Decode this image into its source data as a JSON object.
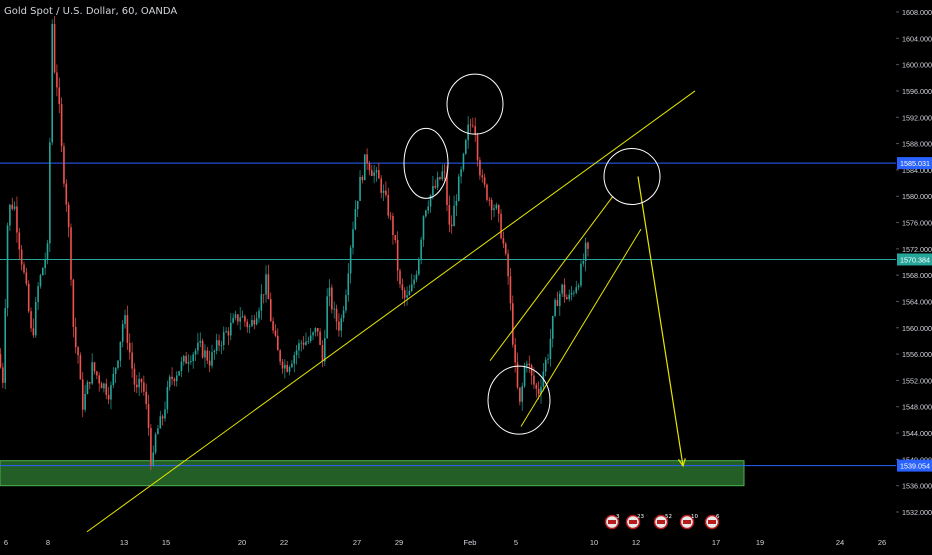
{
  "header": {
    "title": "Gold Spot / U.S. Dollar, 60, OANDA"
  },
  "colors": {
    "background": "#000000",
    "up": "#26a69a",
    "down": "#ef5350",
    "hline": "#2962ff",
    "annotation": "#e6e600",
    "zone_fill": "#2e7d32",
    "label_blue": "#2962ff",
    "label_teal": "#26a69a",
    "axis_text": "#d1d4dc"
  },
  "price_labels": [
    {
      "text": "1585.031",
      "price": 1585.031,
      "style": "blue"
    },
    {
      "text": "1570.384",
      "price": 1570.384,
      "style": "teal"
    },
    {
      "text": "1539.054",
      "price": 1539.054,
      "style": "blue"
    }
  ],
  "event_icons": [
    {
      "label": "3"
    },
    {
      "label": "23"
    },
    {
      "label": "52"
    },
    {
      "label": "10"
    },
    {
      "label": "6"
    }
  ],
  "chart_data": {
    "type": "candlestick",
    "symbol": "Gold Spot / U.S. Dollar, 60, OANDA",
    "ylim": [
      1528,
      1610
    ],
    "y_ticks": [
      1532,
      1536,
      1540,
      1544,
      1548,
      1552,
      1556,
      1560,
      1564,
      1568,
      1572,
      1576,
      1580,
      1584,
      1588,
      1592,
      1596,
      1600,
      1604,
      1608
    ],
    "y_tick_labels": [
      "1532.000",
      "1536.000",
      "1540.000",
      "1544.000",
      "1548.000",
      "1552.000",
      "1556.000",
      "1560.000",
      "1564.000",
      "1568.000",
      "1572.000",
      "1576.000",
      "1580.000",
      "1584.000",
      "1588.000",
      "1592.000",
      "1596.000",
      "1600.000",
      "1604.000",
      "1608.000"
    ],
    "x_ticks": [
      "6",
      "8",
      "13",
      "15",
      "20",
      "22",
      "27",
      "29",
      "Feb",
      "5",
      "10",
      "12",
      "17",
      "19",
      "24",
      "26"
    ],
    "path_points": [
      [
        0,
        1556
      ],
      [
        2,
        1548
      ],
      [
        8,
        1578
      ],
      [
        14,
        1579
      ],
      [
        20,
        1572
      ],
      [
        26,
        1566
      ],
      [
        32,
        1558
      ],
      [
        38,
        1566
      ],
      [
        44,
        1570
      ],
      [
        48,
        1572
      ],
      [
        52,
        1607
      ],
      [
        54,
        1600
      ],
      [
        58,
        1596
      ],
      [
        62,
        1586
      ],
      [
        66,
        1580
      ],
      [
        70,
        1572
      ],
      [
        74,
        1558
      ],
      [
        78,
        1556
      ],
      [
        82,
        1548
      ],
      [
        86,
        1550
      ],
      [
        92,
        1554
      ],
      [
        100,
        1552
      ],
      [
        110,
        1550
      ],
      [
        118,
        1556
      ],
      [
        124,
        1562
      ],
      [
        130,
        1556
      ],
      [
        136,
        1550
      ],
      [
        142,
        1552
      ],
      [
        148,
        1546
      ],
      [
        152,
        1538
      ],
      [
        156,
        1544
      ],
      [
        162,
        1546
      ],
      [
        170,
        1552
      ],
      [
        180,
        1554
      ],
      [
        190,
        1556
      ],
      [
        200,
        1557
      ],
      [
        210,
        1555
      ],
      [
        220,
        1558
      ],
      [
        230,
        1560
      ],
      [
        240,
        1562
      ],
      [
        250,
        1560
      ],
      [
        260,
        1564
      ],
      [
        266,
        1567
      ],
      [
        272,
        1560
      ],
      [
        278,
        1556
      ],
      [
        286,
        1554
      ],
      [
        294,
        1556
      ],
      [
        302,
        1558
      ],
      [
        310,
        1558
      ],
      [
        318,
        1560
      ],
      [
        322,
        1554
      ],
      [
        328,
        1566
      ],
      [
        334,
        1562
      ],
      [
        340,
        1560
      ],
      [
        346,
        1566
      ],
      [
        350,
        1572
      ],
      [
        355,
        1578
      ],
      [
        360,
        1582
      ],
      [
        366,
        1586
      ],
      [
        372,
        1584
      ],
      [
        380,
        1582
      ],
      [
        388,
        1578
      ],
      [
        394,
        1574
      ],
      [
        400,
        1566
      ],
      [
        406,
        1564
      ],
      [
        412,
        1566
      ],
      [
        418,
        1570
      ],
      [
        424,
        1578
      ],
      [
        430,
        1580
      ],
      [
        438,
        1582
      ],
      [
        444,
        1584
      ],
      [
        450,
        1574
      ],
      [
        456,
        1580
      ],
      [
        462,
        1584
      ],
      [
        468,
        1590
      ],
      [
        474,
        1592
      ],
      [
        478,
        1586
      ],
      [
        482,
        1582
      ],
      [
        488,
        1580
      ],
      [
        496,
        1578
      ],
      [
        502,
        1574
      ],
      [
        508,
        1568
      ],
      [
        512,
        1560
      ],
      [
        516,
        1552
      ],
      [
        520,
        1548
      ],
      [
        526,
        1556
      ],
      [
        532,
        1552
      ],
      [
        538,
        1550
      ],
      [
        544,
        1554
      ],
      [
        548,
        1556
      ],
      [
        552,
        1560
      ],
      [
        556,
        1564
      ],
      [
        562,
        1566
      ],
      [
        568,
        1564
      ],
      [
        574,
        1566
      ],
      [
        580,
        1568
      ],
      [
        586,
        1572
      ],
      [
        590,
        1570
      ]
    ],
    "horizontal_lines": [
      {
        "price": 1585.031,
        "color": "hline"
      },
      {
        "price": 1570.384,
        "color": "label_teal"
      },
      {
        "price": 1539.054,
        "color": "hline"
      }
    ],
    "support_zone": {
      "from_price": 1536.0,
      "to_price": 1539.8
    },
    "annotations": [
      {
        "kind": "trendline",
        "from": [
          87,
          1529
        ],
        "to": [
          695,
          1596
        ]
      },
      {
        "kind": "channel-line",
        "from": [
          490,
          1555
        ],
        "to": [
          613,
          1580
        ]
      },
      {
        "kind": "channel-line",
        "from": [
          521,
          1545
        ],
        "to": [
          641,
          1575
        ]
      },
      {
        "kind": "arrow",
        "from": [
          638,
          1583
        ],
        "to": [
          683,
          1539
        ]
      },
      {
        "kind": "circle",
        "center": [
          426,
          1585
        ],
        "rx": 22,
        "ry": 35
      },
      {
        "kind": "circle",
        "center": [
          475,
          1594
        ],
        "rx": 28,
        "ry": 30
      },
      {
        "kind": "circle",
        "center": [
          632,
          1583
        ],
        "rx": 28,
        "ry": 28
      },
      {
        "kind": "circle",
        "center": [
          519,
          1549
        ],
        "rx": 31,
        "ry": 34
      }
    ]
  }
}
